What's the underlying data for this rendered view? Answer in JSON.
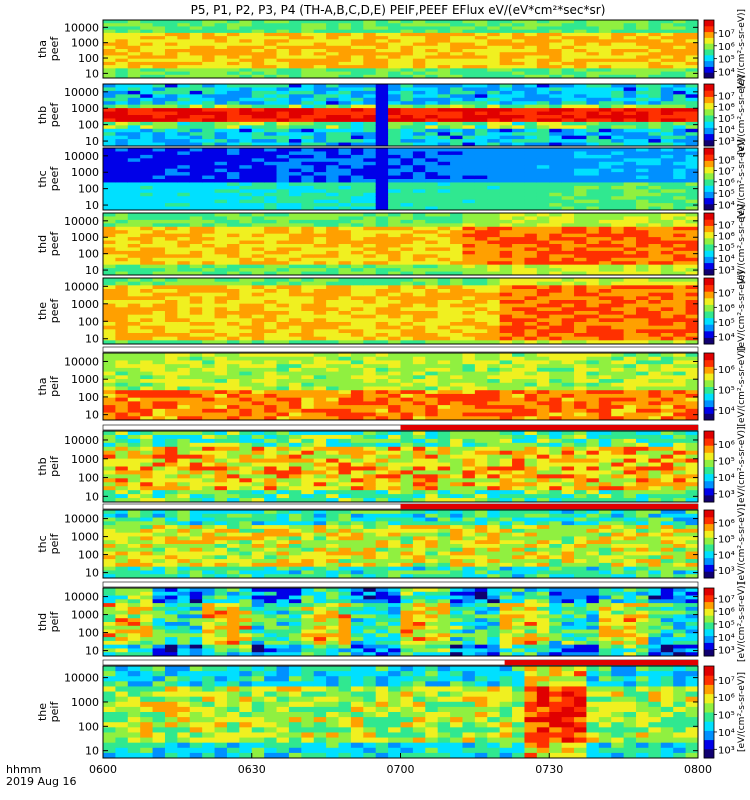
{
  "chart_data": {
    "type": "heatmap",
    "title": "P5, P1, P2, P3, P4 (TH-A,B,C,D,E) PEIF,PEEF EFlux eV/(eV*cm²*sec*sr)",
    "x": {
      "ticks": [
        "0600",
        "0630",
        "0700",
        "0730",
        "0800"
      ],
      "range": [
        "0600",
        "0800"
      ],
      "footer_label": "hhmm",
      "footer_date": "2019 Aug 16"
    },
    "y_scale": "log",
    "y_range": [
      5,
      30000
    ],
    "y_ticks": [
      "10000",
      "1000",
      "100",
      "10"
    ],
    "colorbar_title": "[eV/(cm²-s-sr-eV)]",
    "colormap": [
      "#100070",
      "#0000e8",
      "#0090ff",
      "#00e0ff",
      "#30e890",
      "#90f040",
      "#f0f020",
      "#ffa000",
      "#ff3000",
      "#e00000"
    ],
    "panels": [
      {
        "probe": "tha",
        "product": "peef",
        "cbar_ticks": [
          "10⁷",
          "10⁶",
          "10⁵",
          "10⁴"
        ],
        "cbar_exp": [
          7,
          6,
          5,
          4
        ],
        "cbar_range": [
          3.5,
          8.0
        ],
        "status_bar": false,
        "red_from": null
      },
      {
        "probe": "thb",
        "product": "peef",
        "cbar_ticks": [
          "10⁷",
          "10⁶",
          "10⁵",
          "10⁴",
          "10³"
        ],
        "cbar_exp": [
          7,
          6,
          5,
          4,
          3
        ],
        "cbar_range": [
          2.5,
          8.0
        ],
        "status_bar": false,
        "red_from": null
      },
      {
        "probe": "thc",
        "product": "peef",
        "cbar_ticks": [
          "10⁸",
          "10⁷",
          "10⁶",
          "10⁵",
          "10⁴"
        ],
        "cbar_exp": [
          8,
          7,
          6,
          5,
          4
        ],
        "cbar_range": [
          3.5,
          9.0
        ],
        "status_bar": false,
        "red_from": null
      },
      {
        "probe": "thd",
        "product": "peef",
        "cbar_ticks": [
          "10⁷",
          "10⁶",
          "10⁵",
          "10⁴",
          "10³"
        ],
        "cbar_exp": [
          7,
          6,
          5,
          4,
          3
        ],
        "cbar_range": [
          2.5,
          8.0
        ],
        "status_bar": false,
        "red_from": null
      },
      {
        "probe": "the",
        "product": "peef",
        "cbar_ticks": [
          "10⁷",
          "10⁶",
          "10⁵",
          "10⁴"
        ],
        "cbar_exp": [
          7,
          6,
          5,
          4
        ],
        "cbar_range": [
          3.5,
          8.0
        ],
        "status_bar": false,
        "red_from": null
      },
      {
        "probe": "tha",
        "product": "peif",
        "cbar_ticks": [
          "10⁶",
          "10⁵",
          "10⁴"
        ],
        "cbar_exp": [
          6,
          5,
          4
        ],
        "cbar_range": [
          3.5,
          6.8
        ],
        "status_bar": true,
        "red_from": null
      },
      {
        "probe": "thb",
        "product": "peif",
        "cbar_ticks": [
          "10⁶",
          "10⁵",
          "10⁴",
          "10³"
        ],
        "cbar_exp": [
          6,
          5,
          4,
          3
        ],
        "cbar_range": [
          2.5,
          6.8
        ],
        "status_bar": true,
        "red_from": "0700"
      },
      {
        "probe": "thc",
        "product": "peif",
        "cbar_ticks": [
          "10⁶",
          "10⁵",
          "10⁴",
          "10³"
        ],
        "cbar_exp": [
          6,
          5,
          4,
          3
        ],
        "cbar_range": [
          2.5,
          6.8
        ],
        "status_bar": true,
        "red_from": "0700"
      },
      {
        "probe": "thd",
        "product": "peif",
        "cbar_ticks": [
          "10⁷",
          "10⁶",
          "10⁵",
          "10⁴",
          "10³"
        ],
        "cbar_exp": [
          7,
          6,
          5,
          4,
          3
        ],
        "cbar_range": [
          2.5,
          7.8
        ],
        "status_bar": true,
        "red_from": null
      },
      {
        "probe": "the",
        "product": "peif",
        "cbar_ticks": [
          "10⁷",
          "10⁶",
          "10⁵",
          "10⁴",
          "10³"
        ],
        "cbar_exp": [
          7,
          6,
          5,
          4,
          3
        ],
        "cbar_range": [
          2.5,
          7.8
        ],
        "status_bar": true,
        "red_from": "0721"
      }
    ]
  }
}
